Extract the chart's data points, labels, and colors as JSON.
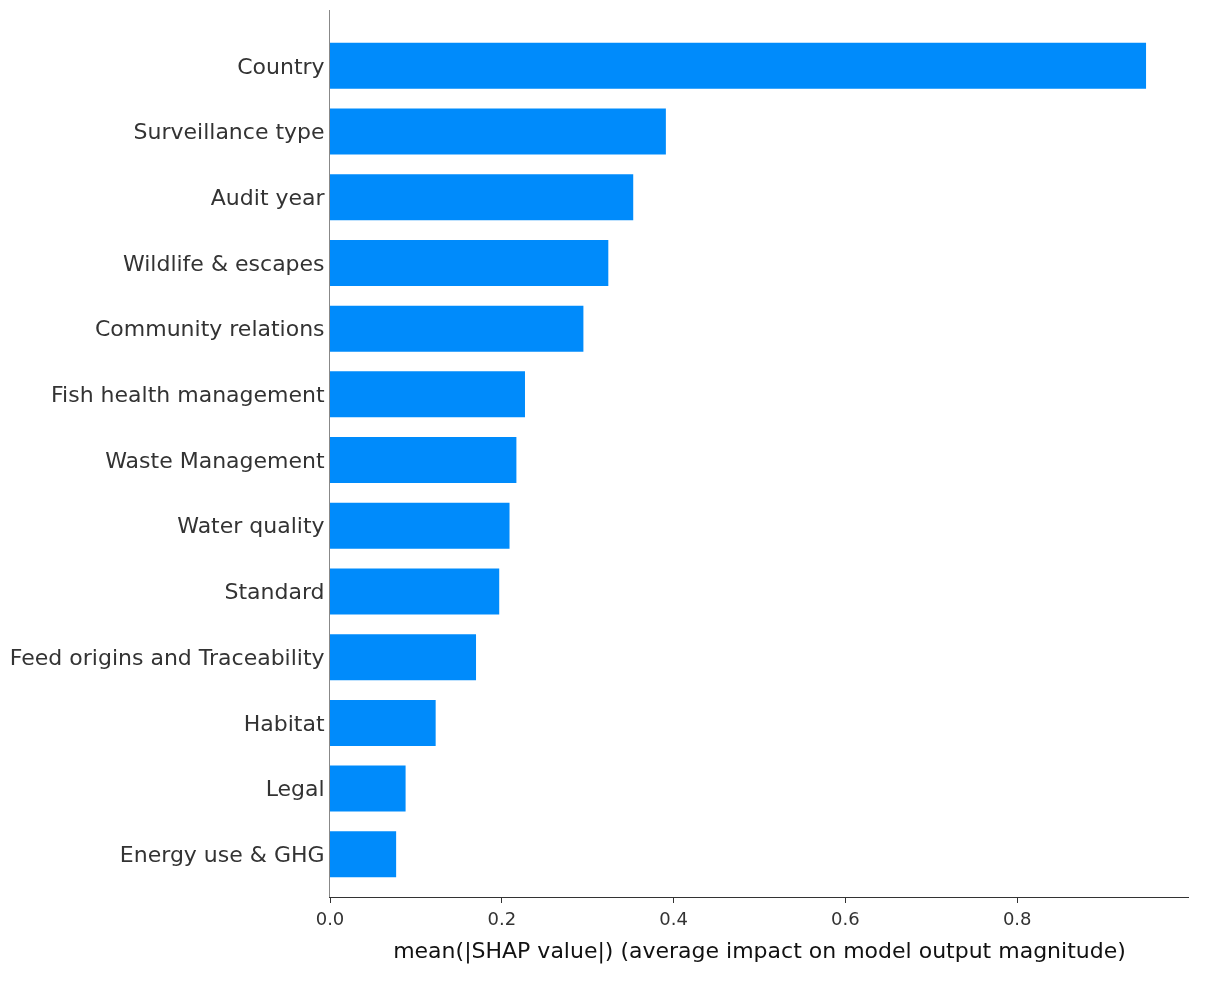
{
  "chart_data": {
    "type": "bar",
    "orientation": "horizontal",
    "categories": [
      "Country",
      "Surveillance type",
      "Audit year",
      "Wildlife & escapes",
      "Community relations",
      "Fish health management",
      "Waste Management",
      "Water quality",
      "Standard",
      "Feed origins and Traceability",
      "Habitat",
      "Legal",
      "Energy use & GHG"
    ],
    "values": [
      0.95,
      0.391,
      0.353,
      0.324,
      0.295,
      0.227,
      0.217,
      0.209,
      0.197,
      0.17,
      0.123,
      0.088,
      0.077
    ],
    "color": "#008bfb",
    "xlabel": "mean(|SHAP value|) (average impact on model output magnitude)",
    "xlim": [
      0,
      1.0
    ],
    "xticks": [
      {
        "value": 0,
        "label": "0.0"
      },
      {
        "value": 0.2,
        "label": "0.2"
      },
      {
        "value": 0.4,
        "label": "0.4"
      },
      {
        "value": 0.6,
        "label": "0.6"
      },
      {
        "value": 0.8,
        "label": "0.8"
      }
    ],
    "legend": false
  }
}
